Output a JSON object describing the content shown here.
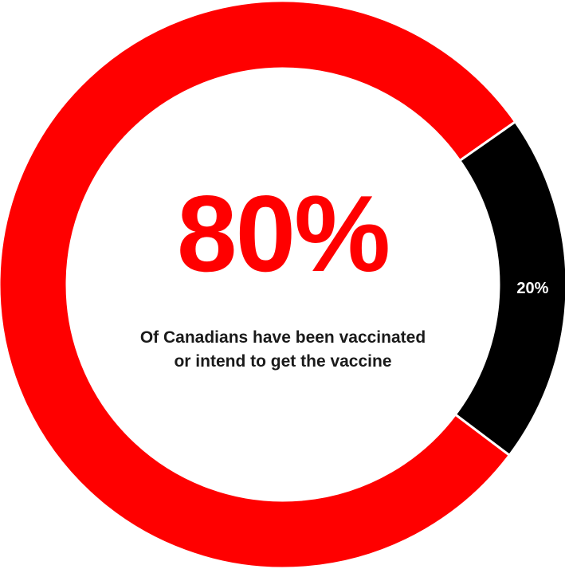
{
  "center": {
    "value": "80%",
    "caption": "Of Canadians have been vaccinated or intend to get the vaccine"
  },
  "chart_data": {
    "type": "pie",
    "variant": "donut",
    "slices": [
      {
        "value": 80,
        "color": "#ff0000",
        "data_label": ""
      },
      {
        "value": 20,
        "color": "#000000",
        "data_label": "20%"
      }
    ],
    "start_angle_deg": 35,
    "direction": "counterclockwise-from-start",
    "separator_color": "#ffffff",
    "legend": "none"
  }
}
